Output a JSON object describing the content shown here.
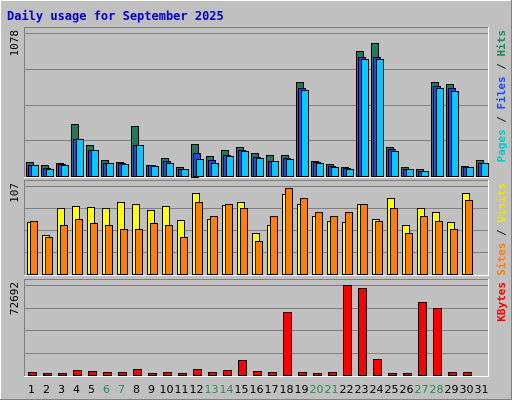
{
  "chart_data": {
    "type": "bar",
    "title": "Daily usage for September 2025",
    "categories": [
      "1",
      "2",
      "3",
      "4",
      "5",
      "6",
      "7",
      "8",
      "9",
      "10",
      "11",
      "12",
      "13",
      "14",
      "15",
      "16",
      "17",
      "18",
      "19",
      "20",
      "21",
      "22",
      "23",
      "24",
      "25",
      "26",
      "27",
      "28",
      "29",
      "30",
      "31"
    ],
    "weekend_days": [
      "6",
      "7",
      "13",
      "14",
      "20",
      "21",
      "27",
      "28"
    ],
    "panels": [
      {
        "id": "hits-files-pages",
        "ymax_label": "1078",
        "ylim": [
          0,
          1078
        ],
        "axis_label_parts": [
          {
            "text": "Pages",
            "color": "#00cccc"
          },
          {
            "text": " / ",
            "color": "#222222"
          },
          {
            "text": "Files",
            "color": "#1c48ff"
          },
          {
            "text": " / ",
            "color": "#222222"
          },
          {
            "text": "Hits",
            "color": "#1e8a5c"
          }
        ],
        "series": [
          {
            "name": "Hits",
            "color": "#1e7a5a",
            "values": [
              105,
              85,
              100,
              395,
              230,
              120,
              105,
              375,
              85,
              135,
              70,
              245,
              150,
              195,
              220,
              175,
              155,
              155,
              705,
              110,
              90,
              70,
              945,
              1005,
              215,
              65,
              50,
              705,
              690,
              75,
              120
            ]
          },
          {
            "name": "Files",
            "color": "#1c48ff",
            "values": [
              85,
              60,
              90,
              280,
              195,
              100,
              95,
              230,
              80,
              110,
              55,
              175,
              120,
              160,
              195,
              140,
              115,
              135,
              665,
              105,
              75,
              60,
              900,
              895,
              200,
              55,
              40,
              680,
              660,
              70,
              100
            ]
          },
          {
            "name": "Pages",
            "color": "#00ccff",
            "values": [
              80,
              55,
              85,
              280,
              195,
              95,
              90,
              230,
              75,
              100,
              50,
              130,
              100,
              150,
              190,
              135,
              110,
              125,
              650,
              100,
              70,
              55,
              885,
              880,
              190,
              50,
              35,
              665,
              640,
              65,
              95
            ]
          }
        ]
      },
      {
        "id": "visits-sites",
        "ymax_label": "107",
        "ylim": [
          0,
          107
        ],
        "axis_label_parts": [
          {
            "text": "Sites",
            "color": "#ff8000"
          },
          {
            "text": " / ",
            "color": "#222222"
          },
          {
            "text": "Visits",
            "color": "#e6e600"
          }
        ],
        "series": [
          {
            "name": "Visits",
            "color": "#ffff00",
            "values": [
              63,
              48,
              80,
              83,
              82,
              80,
              87,
              85,
              78,
              83,
              66,
              98,
              67,
              84,
              87,
              50,
              60,
              97,
              85,
              70,
              65,
              63,
              85,
              67,
              92,
              60,
              80,
              75,
              63,
              98,
              0
            ]
          },
          {
            "name": "Sites",
            "color": "#ff8000",
            "values": [
              65,
              45,
              60,
              67,
              62,
              60,
              55,
              55,
              62,
              60,
              45,
              87,
              70,
              85,
              80,
              40,
              70,
              104,
              92,
              75,
              70,
              75,
              85,
              65,
              80,
              50,
              70,
              65,
              55,
              90,
              0
            ]
          }
        ]
      },
      {
        "id": "kbytes",
        "ymax_label": "72692",
        "ylim": [
          0,
          72692
        ],
        "axis_label_parts": [
          {
            "text": "KBytes",
            "color": "#ff0000"
          }
        ],
        "series": [
          {
            "name": "KBytes",
            "color": "#ff0000",
            "values": [
              2500,
              1500,
              1500,
              4000,
              3000,
              2500,
              2500,
              5000,
              1500,
              2500,
              2000,
              5000,
              2500,
              4000,
              12000,
              3000,
              2500,
              51000,
              2500,
              2000,
              2500,
              72692,
              70500,
              13000,
              1500,
              1500,
              59000,
              54500,
              2500,
              2500,
              0
            ]
          }
        ]
      }
    ]
  }
}
